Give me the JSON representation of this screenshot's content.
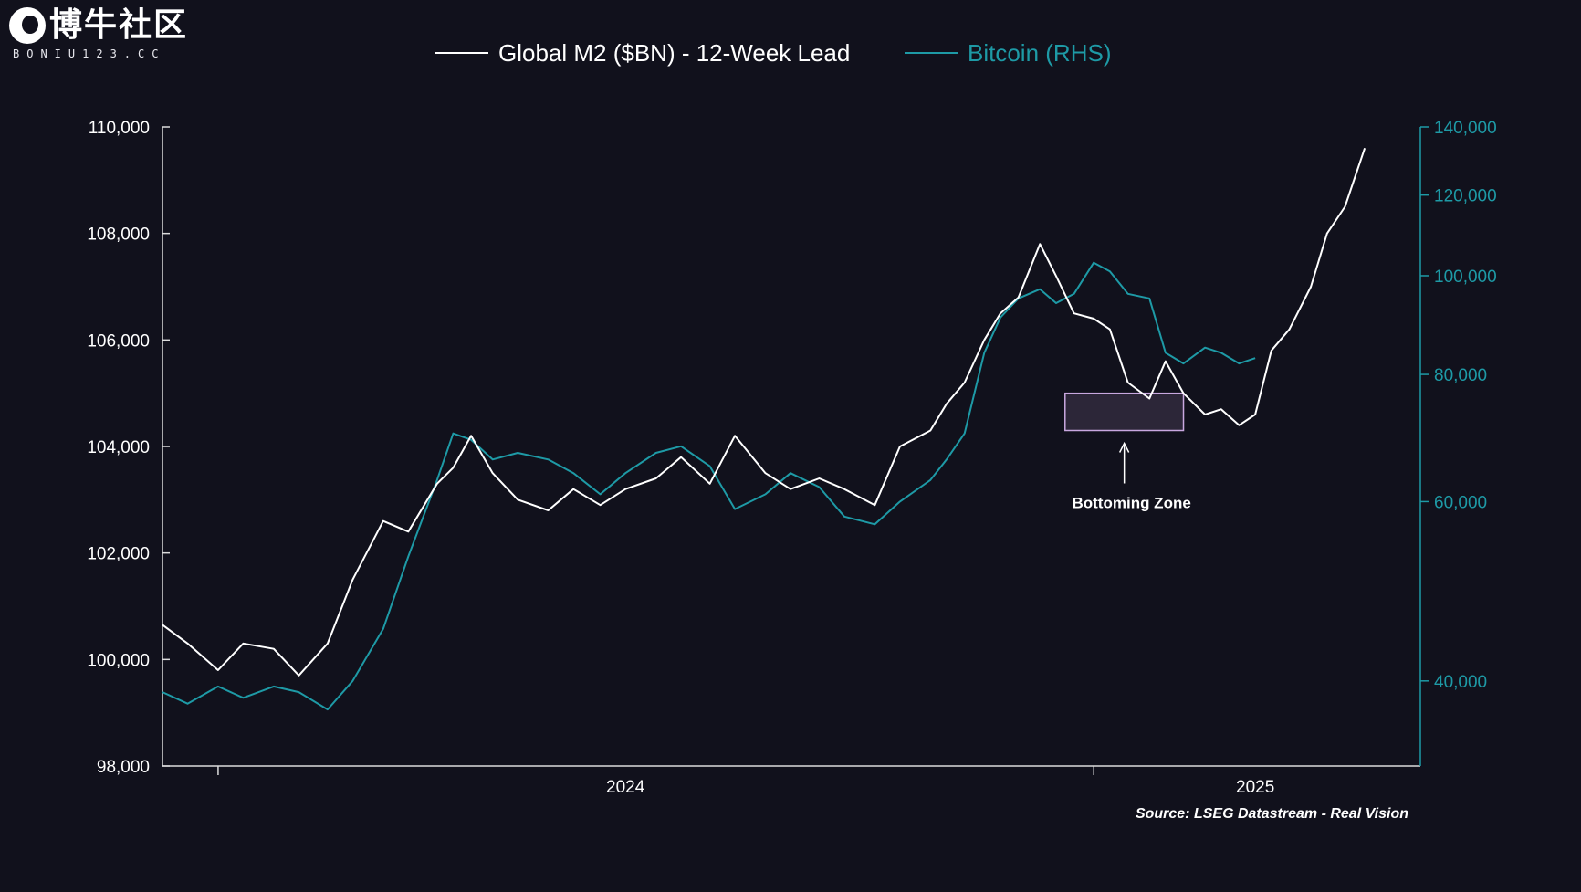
{
  "logo": {
    "title": "博牛社区",
    "subtitle": "BONIU123.CC",
    "icon": "bull-head-icon"
  },
  "source": "Source: LSEG Datastream - Real Vision",
  "chart_data": {
    "type": "line",
    "legend_placement": "top-center",
    "legend": [
      {
        "label": "Global M2 ($BN) - 12-Week Lead",
        "color": "#ffffff"
      },
      {
        "label": "Bitcoin (RHS)",
        "color": "#1e9aa6"
      }
    ],
    "x_ticks": [
      "2024",
      "2025"
    ],
    "x_range": [
      "2023-07",
      "2025-06"
    ],
    "y_left": {
      "ticks": [
        "110,000",
        "108,000",
        "106,000",
        "104,000",
        "102,000",
        "100,000",
        "98,000"
      ],
      "range": [
        98000,
        110000
      ]
    },
    "y_right": {
      "scale": "log",
      "ticks": [
        "140,000",
        "120,000",
        "100,000",
        "80,000",
        "60,000",
        "40,000"
      ],
      "range": [
        33000,
        140000
      ]
    },
    "annotation": {
      "text": "Bottoming Zone",
      "x_range": [
        "2024-11-15",
        "2025-01-20"
      ],
      "y_range": [
        104300,
        105000
      ]
    },
    "series": [
      {
        "name": "Global M2 ($BN) - 12-Week Lead",
        "axis": "left",
        "color": "#ffffff",
        "points": [
          [
            "2023-07-01",
            100650
          ],
          [
            "2023-07-15",
            100300
          ],
          [
            "2023-08-01",
            99800
          ],
          [
            "2023-08-15",
            100300
          ],
          [
            "2023-09-01",
            100200
          ],
          [
            "2023-09-15",
            99700
          ],
          [
            "2023-10-01",
            100300
          ],
          [
            "2023-10-15",
            101500
          ],
          [
            "2023-11-01",
            102600
          ],
          [
            "2023-11-15",
            102400
          ],
          [
            "2023-12-01",
            103300
          ],
          [
            "2023-12-10",
            103600
          ],
          [
            "2023-12-20",
            104200
          ],
          [
            "2024-01-01",
            103500
          ],
          [
            "2024-01-15",
            103000
          ],
          [
            "2024-02-01",
            102800
          ],
          [
            "2024-02-15",
            103200
          ],
          [
            "2024-03-01",
            102900
          ],
          [
            "2024-03-15",
            103200
          ],
          [
            "2024-04-01",
            103400
          ],
          [
            "2024-04-15",
            103800
          ],
          [
            "2024-05-01",
            103300
          ],
          [
            "2024-05-15",
            104200
          ],
          [
            "2024-06-01",
            103500
          ],
          [
            "2024-06-15",
            103200
          ],
          [
            "2024-07-01",
            103400
          ],
          [
            "2024-07-15",
            103200
          ],
          [
            "2024-08-01",
            102900
          ],
          [
            "2024-08-15",
            104000
          ],
          [
            "2024-09-01",
            104300
          ],
          [
            "2024-09-10",
            104800
          ],
          [
            "2024-09-20",
            105200
          ],
          [
            "2024-10-01",
            106000
          ],
          [
            "2024-10-10",
            106500
          ],
          [
            "2024-10-20",
            106800
          ],
          [
            "2024-11-01",
            107800
          ],
          [
            "2024-11-10",
            107200
          ],
          [
            "2024-11-20",
            106500
          ],
          [
            "2024-12-01",
            106400
          ],
          [
            "2024-12-10",
            106200
          ],
          [
            "2024-12-20",
            105200
          ],
          [
            "2025-01-01",
            104900
          ],
          [
            "2025-01-10",
            105600
          ],
          [
            "2025-01-20",
            105000
          ],
          [
            "2025-02-01",
            104600
          ],
          [
            "2025-02-10",
            104700
          ],
          [
            "2025-02-20",
            104400
          ],
          [
            "2025-03-01",
            104600
          ],
          [
            "2025-03-10",
            105800
          ],
          [
            "2025-03-20",
            106200
          ],
          [
            "2025-04-01",
            107000
          ],
          [
            "2025-04-10",
            108000
          ],
          [
            "2025-04-20",
            108500
          ],
          [
            "2025-05-01",
            109600
          ]
        ]
      },
      {
        "name": "Bitcoin (RHS)",
        "axis": "right",
        "color": "#1e9aa6",
        "points": [
          [
            "2023-07-01",
            39000
          ],
          [
            "2023-07-15",
            38000
          ],
          [
            "2023-08-01",
            39500
          ],
          [
            "2023-08-15",
            38500
          ],
          [
            "2023-09-01",
            39500
          ],
          [
            "2023-09-15",
            39000
          ],
          [
            "2023-10-01",
            37500
          ],
          [
            "2023-10-15",
            40000
          ],
          [
            "2023-11-01",
            45000
          ],
          [
            "2023-11-15",
            53000
          ],
          [
            "2023-12-01",
            63000
          ],
          [
            "2023-12-10",
            70000
          ],
          [
            "2023-12-20",
            69000
          ],
          [
            "2024-01-01",
            66000
          ],
          [
            "2024-01-15",
            67000
          ],
          [
            "2024-02-01",
            66000
          ],
          [
            "2024-02-15",
            64000
          ],
          [
            "2024-03-01",
            61000
          ],
          [
            "2024-03-15",
            64000
          ],
          [
            "2024-04-01",
            67000
          ],
          [
            "2024-04-15",
            68000
          ],
          [
            "2024-05-01",
            65000
          ],
          [
            "2024-05-15",
            59000
          ],
          [
            "2024-06-01",
            61000
          ],
          [
            "2024-06-15",
            64000
          ],
          [
            "2024-07-01",
            62000
          ],
          [
            "2024-07-15",
            58000
          ],
          [
            "2024-08-01",
            57000
          ],
          [
            "2024-08-15",
            60000
          ],
          [
            "2024-09-01",
            63000
          ],
          [
            "2024-09-10",
            66000
          ],
          [
            "2024-09-20",
            70000
          ],
          [
            "2024-10-01",
            84000
          ],
          [
            "2024-10-10",
            91000
          ],
          [
            "2024-10-20",
            95000
          ],
          [
            "2024-11-01",
            97000
          ],
          [
            "2024-11-10",
            94000
          ],
          [
            "2024-11-20",
            96000
          ],
          [
            "2024-12-01",
            103000
          ],
          [
            "2024-12-10",
            101000
          ],
          [
            "2024-12-20",
            96000
          ],
          [
            "2025-01-01",
            95000
          ],
          [
            "2025-01-10",
            84000
          ],
          [
            "2025-01-20",
            82000
          ],
          [
            "2025-02-01",
            85000
          ],
          [
            "2025-02-10",
            84000
          ],
          [
            "2025-02-20",
            82000
          ],
          [
            "2025-03-01",
            83000
          ]
        ]
      }
    ]
  }
}
